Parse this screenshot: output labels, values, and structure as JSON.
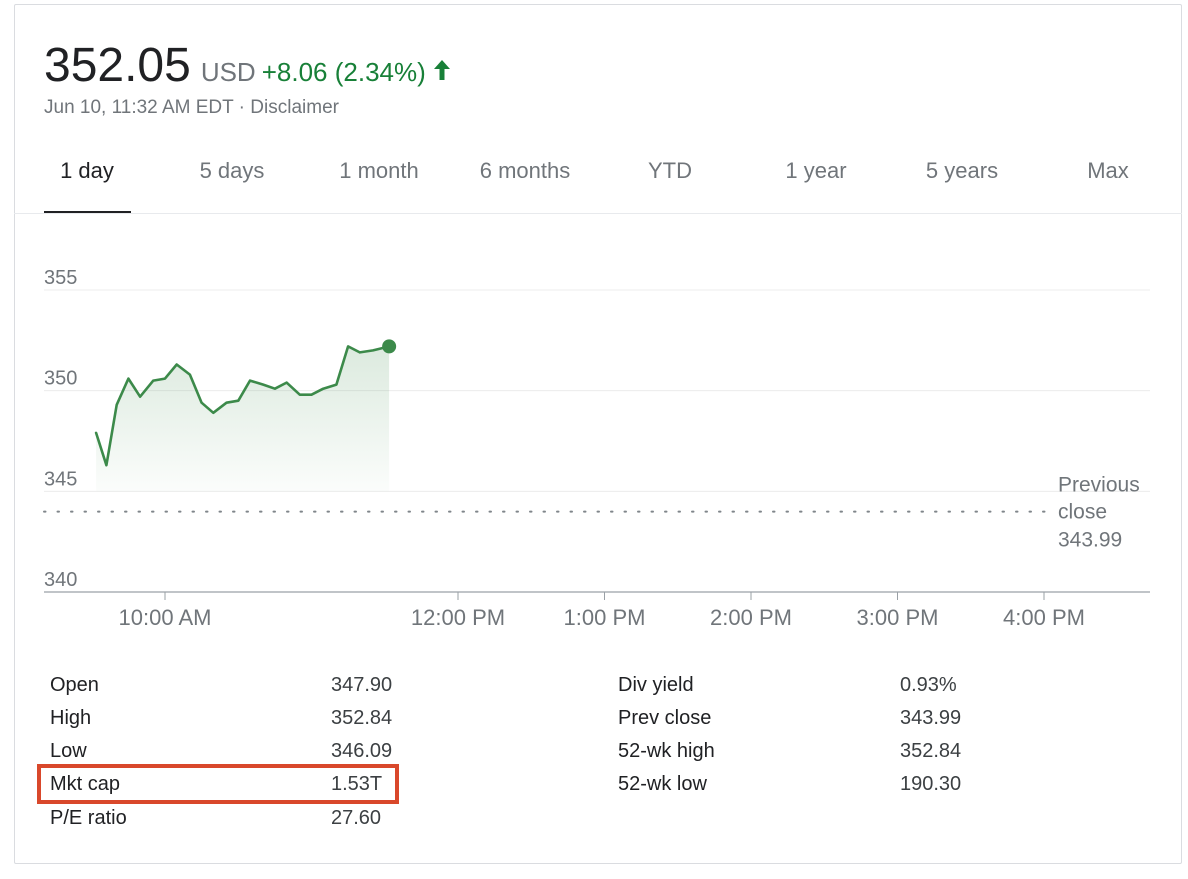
{
  "quote": {
    "price": "352.05",
    "currency": "USD",
    "change": "+8.06 (2.34%)",
    "timestamp": "Jun 10, 11:32 AM EDT",
    "separator": " · ",
    "disclaimer": "Disclaimer"
  },
  "tabs": [
    "1 day",
    "5 days",
    "1 month",
    "6 months",
    "YTD",
    "1 year",
    "5 years",
    "Max"
  ],
  "active_tab": "1 day",
  "colors": {
    "line": "#3c8a4a",
    "positive": "#188038",
    "highlight": "#d9482b"
  },
  "chart_data": {
    "type": "line",
    "x_unit": "time of day (hours, ET)",
    "ylim": [
      340,
      355
    ],
    "xlim": [
      9.5,
      16.2
    ],
    "y_ticks": [
      "355",
      "350",
      "345",
      "340"
    ],
    "x_ticks": [
      "10:00 AM",
      "12:00 PM",
      "1:00 PM",
      "2:00 PM",
      "3:00 PM",
      "4:00 PM"
    ],
    "grid": true,
    "series": [
      {
        "x": [
          9.53,
          9.6,
          9.67,
          9.75,
          9.83,
          9.92,
          10.0,
          10.08,
          10.17,
          10.25,
          10.33,
          10.42,
          10.5,
          10.58,
          10.67,
          10.75,
          10.83,
          10.92,
          11.0,
          11.08,
          11.17,
          11.25,
          11.33,
          11.42,
          11.53
        ],
        "y": [
          347.9,
          346.3,
          349.3,
          350.6,
          349.7,
          350.5,
          350.6,
          351.3,
          350.8,
          349.4,
          348.9,
          349.4,
          349.5,
          350.5,
          350.3,
          350.1,
          350.4,
          349.8,
          349.8,
          350.1,
          350.3,
          352.2,
          351.9,
          352.0,
          352.2
        ]
      }
    ],
    "reference_line": {
      "label": "Previous close",
      "value": 343.99,
      "value_label": "343.99"
    }
  },
  "stats": {
    "left": [
      {
        "label": "Open",
        "value": "347.90"
      },
      {
        "label": "High",
        "value": "352.84"
      },
      {
        "label": "Low",
        "value": "346.09"
      },
      {
        "label": "Mkt cap",
        "value": "1.53T"
      },
      {
        "label": "P/E ratio",
        "value": "27.60"
      }
    ],
    "right": [
      {
        "label": "Div yield",
        "value": "0.93%"
      },
      {
        "label": "Prev close",
        "value": "343.99"
      },
      {
        "label": "52-wk high",
        "value": "352.84"
      },
      {
        "label": "52-wk low",
        "value": "190.30"
      }
    ]
  }
}
